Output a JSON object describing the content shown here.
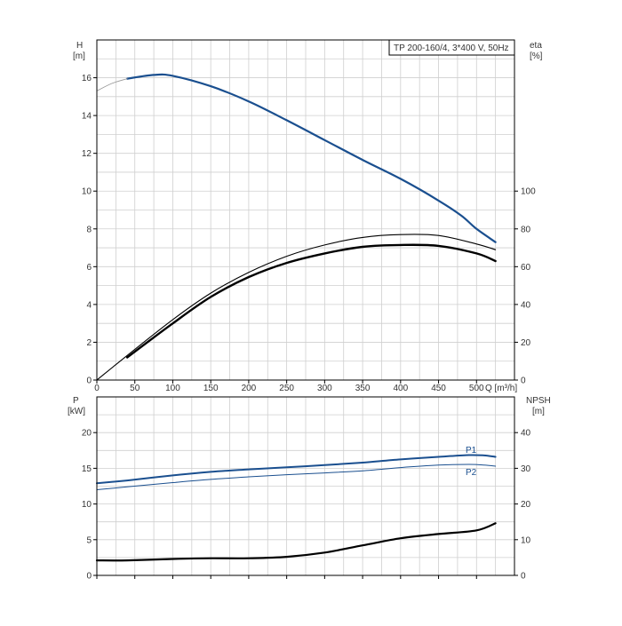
{
  "chart_data": [
    {
      "type": "line",
      "title": "TP 200-160/4, 3*400 V, 50Hz",
      "xlabel": "Q [m³/h]",
      "x_unit_label": "Q [m³/h]",
      "xlim": [
        0,
        550
      ],
      "x_ticks": [
        0,
        50,
        100,
        150,
        200,
        250,
        300,
        350,
        400,
        450,
        500
      ],
      "ylabel_left": [
        "H",
        "[m]"
      ],
      "ylim_left": [
        0,
        18
      ],
      "y_ticks_left": [
        0,
        2,
        4,
        6,
        8,
        10,
        12,
        14,
        16
      ],
      "ylabel_right": [
        "eta",
        "[%]"
      ],
      "ylim_right": [
        0,
        180
      ],
      "y_ticks_right": [
        0,
        20,
        40,
        60,
        80,
        100
      ],
      "grid": true,
      "colors": {
        "head": "#1a4f8f",
        "eff": "#000000",
        "extension": "#999999"
      },
      "series": [
        {
          "axis": "left",
          "color": "#1a4f8f",
          "x": [
            40,
            75,
            100,
            150,
            200,
            250,
            300,
            350,
            400,
            450,
            480,
            500,
            525
          ],
          "y": [
            15.95,
            16.15,
            16.1,
            15.55,
            14.75,
            13.75,
            12.7,
            11.65,
            10.65,
            9.5,
            8.7,
            8.0,
            7.3
          ]
        },
        {
          "axis": "left",
          "color": "#999999",
          "x": [
            0,
            20,
            40
          ],
          "y": [
            15.3,
            15.7,
            15.95
          ]
        },
        {
          "axis": "right",
          "color": "#000000",
          "x": [
            0,
            40,
            100,
            150,
            200,
            250,
            300,
            350,
            400,
            450,
            500,
            525
          ],
          "y": [
            0,
            13,
            32,
            46,
            57,
            65.5,
            71.5,
            75.5,
            77,
            76.5,
            72,
            69
          ]
        },
        {
          "axis": "right",
          "color": "#000000",
          "x": [
            40,
            100,
            150,
            200,
            250,
            300,
            350,
            400,
            450,
            500,
            525
          ],
          "y": [
            12,
            30,
            44,
            54.5,
            62,
            67,
            70.5,
            71.5,
            71,
            67,
            63
          ]
        }
      ]
    },
    {
      "type": "line",
      "xlim": [
        0,
        550
      ],
      "ylabel_left": [
        "P",
        "[kW]"
      ],
      "ylim_left": [
        0,
        25
      ],
      "y_ticks_left": [
        0,
        5,
        10,
        15,
        20
      ],
      "ylabel_right": [
        "NPSH",
        "[m]"
      ],
      "ylim_right": [
        0,
        50
      ],
      "y_ticks_right": [
        0,
        10,
        20,
        30,
        40
      ],
      "grid": true,
      "series": [
        {
          "name": "P1",
          "axis": "left",
          "color": "#1a4f8f",
          "x": [
            0,
            40,
            100,
            150,
            200,
            250,
            300,
            350,
            400,
            450,
            490,
            510,
            525
          ],
          "y": [
            12.9,
            13.3,
            14.0,
            14.5,
            14.85,
            15.15,
            15.45,
            15.8,
            16.25,
            16.6,
            16.85,
            16.8,
            16.6
          ]
        },
        {
          "name": "P2",
          "axis": "left",
          "color": "#1a4f8f",
          "x": [
            0,
            40,
            100,
            150,
            200,
            250,
            300,
            350,
            400,
            450,
            490,
            510,
            525
          ],
          "y": [
            12.0,
            12.4,
            13.0,
            13.45,
            13.8,
            14.1,
            14.35,
            14.65,
            15.1,
            15.45,
            15.55,
            15.45,
            15.3
          ]
        },
        {
          "axis": "right",
          "color": "#000000",
          "x": [
            0,
            40,
            100,
            150,
            200,
            250,
            300,
            350,
            400,
            450,
            500,
            525
          ],
          "y": [
            4.2,
            4.2,
            4.6,
            4.8,
            4.8,
            5.2,
            6.4,
            8.4,
            10.4,
            11.6,
            12.6,
            14.6
          ]
        }
      ]
    }
  ]
}
